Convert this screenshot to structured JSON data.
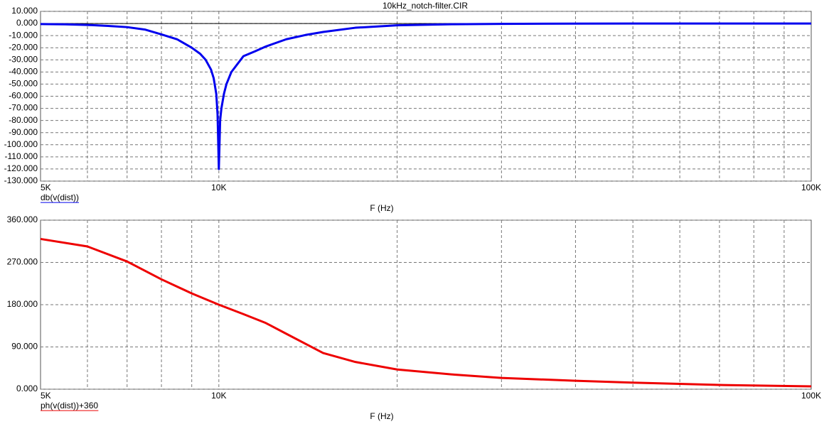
{
  "chart_data": [
    {
      "type": "line",
      "title": "10kHz_notch-filter.CIR",
      "xlabel": "F (Hz)",
      "log_x": true,
      "grid": true,
      "zero_line": true,
      "xlim": [
        5000,
        100000
      ],
      "xticks": [
        {
          "value": 5000,
          "label": "5K"
        },
        {
          "value": 10000,
          "label": "10K"
        },
        {
          "value": 100000,
          "label": "100K"
        }
      ],
      "ylim": [
        -130,
        10
      ],
      "yticks": [
        {
          "value": 10,
          "label": "10.000"
        },
        {
          "value": 0,
          "label": "0.000"
        },
        {
          "value": -10,
          "label": "-10.000"
        },
        {
          "value": -20,
          "label": "-20.000"
        },
        {
          "value": -30,
          "label": "-30.000"
        },
        {
          "value": -40,
          "label": "-40.000"
        },
        {
          "value": -50,
          "label": "-50.000"
        },
        {
          "value": -60,
          "label": "-60.000"
        },
        {
          "value": -70,
          "label": "-70.000"
        },
        {
          "value": -80,
          "label": "-80.000"
        },
        {
          "value": -90,
          "label": "-90.000"
        },
        {
          "value": -100,
          "label": "-100.000"
        },
        {
          "value": -110,
          "label": "-110.000"
        },
        {
          "value": -120,
          "label": "-120.000"
        },
        {
          "value": -130,
          "label": "-130.000"
        }
      ],
      "x": [
        5000,
        5500,
        6000,
        6500,
        7000,
        7500,
        8000,
        8500,
        9000,
        9300,
        9500,
        9700,
        9800,
        9900,
        9950,
        10000,
        10050,
        10100,
        10200,
        10300,
        10500,
        11000,
        11500,
        12000,
        13000,
        14000,
        15000,
        17000,
        20000,
        25000,
        30000,
        40000,
        50000,
        70000,
        100000
      ],
      "series": [
        {
          "name": "db(v(dist))",
          "color": "#0000ee",
          "values": [
            -0.5,
            -0.7,
            -1.2,
            -2,
            -3,
            -5,
            -9,
            -13,
            -20,
            -25,
            -30,
            -38,
            -45,
            -58,
            -75,
            -120,
            -80,
            -70,
            -58,
            -50,
            -40,
            -27,
            -23,
            -19,
            -13,
            -9.5,
            -7,
            -3.5,
            -1.5,
            -0.6,
            -0.3,
            -0.1,
            0,
            0,
            0
          ]
        }
      ]
    },
    {
      "type": "line",
      "xlabel": "F (Hz)",
      "log_x": true,
      "grid": true,
      "zero_line": false,
      "xlim": [
        5000,
        100000
      ],
      "xticks": [
        {
          "value": 5000,
          "label": "5K"
        },
        {
          "value": 10000,
          "label": "10K"
        },
        {
          "value": 100000,
          "label": "100K"
        }
      ],
      "ylim": [
        0,
        360
      ],
      "yticks": [
        {
          "value": 360,
          "label": "360.000"
        },
        {
          "value": 270,
          "label": "270.000"
        },
        {
          "value": 180,
          "label": "180.000"
        },
        {
          "value": 90,
          "label": "90.000"
        },
        {
          "value": 0,
          "label": "0.000"
        }
      ],
      "x": [
        5000,
        6000,
        7000,
        8000,
        9000,
        10000,
        11000,
        12000,
        13000,
        15000,
        17000,
        20000,
        25000,
        30000,
        40000,
        50000,
        70000,
        100000
      ],
      "series": [
        {
          "name": "ph(v(dist))+360",
          "color": "#ee0000",
          "values": [
            320,
            304,
            272,
            234,
            204,
            180,
            160,
            141,
            118,
            77,
            58,
            42,
            31,
            24,
            18,
            14,
            9,
            6
          ]
        }
      ]
    }
  ]
}
